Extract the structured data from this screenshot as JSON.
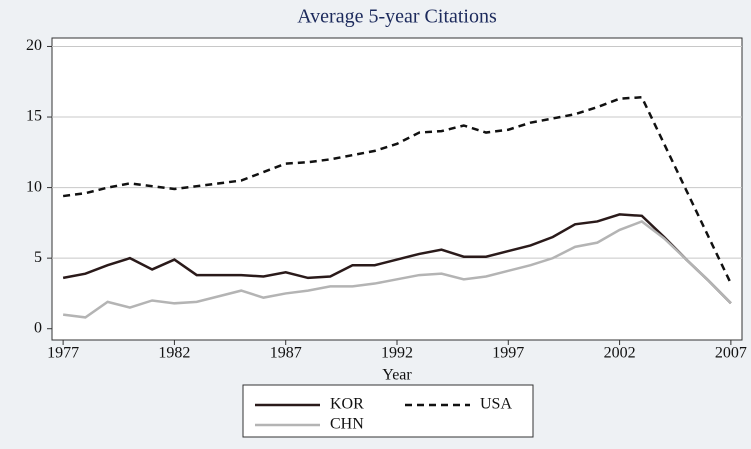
{
  "chart_data": {
    "type": "line",
    "title": "Average 5-year Citations",
    "x_label": "Year",
    "x": [
      1977,
      1978,
      1979,
      1980,
      1981,
      1982,
      1983,
      1984,
      1985,
      1986,
      1987,
      1988,
      1989,
      1990,
      1991,
      1992,
      1993,
      1994,
      1995,
      1996,
      1997,
      1998,
      1999,
      2000,
      2001,
      2002,
      2003,
      2004,
      2005,
      2006,
      2007
    ],
    "series": [
      {
        "name": "KOR",
        "color": "#2a1a1a",
        "linestyle": "solid",
        "values": [
          3.6,
          3.9,
          4.5,
          5.0,
          4.2,
          4.9,
          3.8,
          3.8,
          3.8,
          3.7,
          4.0,
          3.6,
          3.7,
          4.5,
          4.5,
          4.9,
          5.3,
          5.6,
          5.1,
          5.1,
          5.5,
          5.9,
          6.5,
          7.4,
          7.6,
          8.1,
          8.0,
          6.5,
          4.9,
          3.4,
          1.8
        ]
      },
      {
        "name": "USA",
        "color": "#111111",
        "linestyle": "dashed",
        "values": [
          9.4,
          9.6,
          10.0,
          10.3,
          10.1,
          9.9,
          10.1,
          10.3,
          10.5,
          11.1,
          11.7,
          11.8,
          12.0,
          12.3,
          12.6,
          13.1,
          13.9,
          14.0,
          14.4,
          13.9,
          14.1,
          14.6,
          14.9,
          15.2,
          15.7,
          16.3,
          16.4,
          13.1,
          9.8,
          6.5,
          3.2
        ]
      },
      {
        "name": "CHN",
        "color": "#b4b4b4",
        "linestyle": "solid",
        "values": [
          1.0,
          0.8,
          1.9,
          1.5,
          2.0,
          1.8,
          1.9,
          2.3,
          2.7,
          2.2,
          2.5,
          2.7,
          3.0,
          3.0,
          3.2,
          3.5,
          3.8,
          3.9,
          3.5,
          3.7,
          4.1,
          4.5,
          5.0,
          5.8,
          6.1,
          7.0,
          7.6,
          6.4,
          4.9,
          3.4,
          1.8
        ]
      }
    ],
    "xlim": [
      1976.5,
      2007.5
    ],
    "xticks": [
      1977,
      1982,
      1987,
      1992,
      1997,
      2002,
      2007
    ],
    "ylim": [
      -0.8,
      20.6
    ],
    "yticks": [
      0,
      5,
      10,
      15,
      20
    ],
    "grid": true,
    "legend": "bottom"
  }
}
